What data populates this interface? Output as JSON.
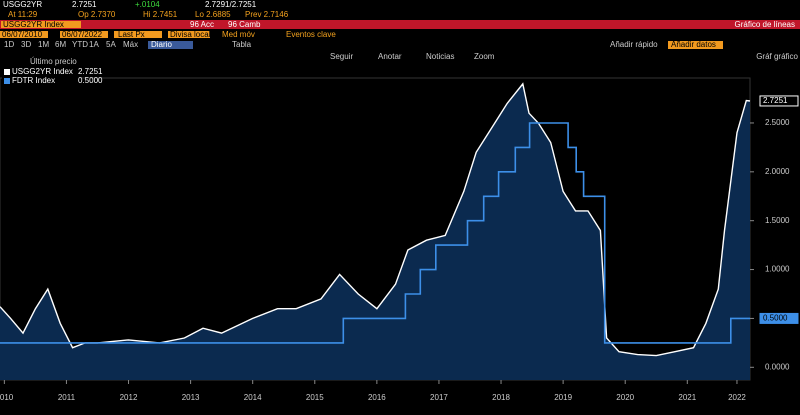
{
  "header": {
    "ticker": "USGG2YR",
    "last": "2.7251",
    "change": "+.0104",
    "bidask": "2.7291/2.7251",
    "at": "At 11:29",
    "open": "Op 2.7370",
    "high": "Hi 2.7451",
    "low": "Lo 2.6885",
    "prev": "Prev 2.7146"
  },
  "toolbar": {
    "security": "USGG2YR Index",
    "acc": "96 Acc",
    "camb": "96 Camb",
    "chart_type": "Gráfico de líneas",
    "start": "06/07/2010",
    "end": "06/07/2022",
    "field": "Last Px",
    "currency": "Divisa local",
    "ma": "Med móv",
    "events": "Eventos clave",
    "periods": [
      "1D",
      "3D",
      "1M",
      "6M",
      "YTD",
      "1A",
      "5A",
      "Máx"
    ],
    "freq": "Diario",
    "table": "Tabla",
    "quick_add": "Añadir rápido",
    "add_data": "Añadir datos"
  },
  "chart_tools": [
    "Seguir",
    "Anotar",
    "Noticias",
    "Zoom"
  ],
  "chart_menu": "Gráf gráfico",
  "chart_data": {
    "type": "line",
    "legend_title": "Último precio",
    "xlim": [
      2010.43,
      2022.51
    ],
    "xticks": [
      {
        "value": 2010.5,
        "label": "2010"
      },
      {
        "value": 2011.5,
        "label": "2011"
      },
      {
        "value": 2012.5,
        "label": "2012"
      },
      {
        "value": 2013.5,
        "label": "2013"
      },
      {
        "value": 2014.5,
        "label": "2014"
      },
      {
        "value": 2015.5,
        "label": "2015"
      },
      {
        "value": 2016.5,
        "label": "2016"
      },
      {
        "value": 2017.5,
        "label": "2017"
      },
      {
        "value": 2018.5,
        "label": "2018"
      },
      {
        "value": 2019.5,
        "label": "2019"
      },
      {
        "value": 2020.5,
        "label": "2020"
      },
      {
        "value": 2021.5,
        "label": "2021"
      },
      {
        "value": 2022.3,
        "label": "2022"
      }
    ],
    "ylim": [
      -0.13,
      2.96
    ],
    "yticks": [
      {
        "value": 0,
        "label": "0.0000"
      },
      {
        "value": 0.5,
        "label": "0.5000"
      },
      {
        "value": 1,
        "label": "1.0000"
      },
      {
        "value": 1.5,
        "label": "1.5000"
      },
      {
        "value": 2,
        "label": "2.0000"
      },
      {
        "value": 2.5,
        "label": "2.5000"
      }
    ],
    "series": [
      {
        "name": "USGG2YR Index",
        "last": "2.7251",
        "color": "#ffffff",
        "area": "#0b2a4f",
        "x": [
          2010.43,
          2010.6,
          2010.8,
          2011.0,
          2011.2,
          2011.4,
          2011.6,
          2011.8,
          2012.0,
          2012.5,
          2013.0,
          2013.4,
          2013.7,
          2014.0,
          2014.5,
          2014.9,
          2015.2,
          2015.6,
          2015.9,
          2016.2,
          2016.5,
          2016.8,
          2017.0,
          2017.3,
          2017.6,
          2017.9,
          2018.1,
          2018.4,
          2018.6,
          2018.85,
          2018.95,
          2019.1,
          2019.3,
          2019.5,
          2019.7,
          2019.9,
          2020.1,
          2020.2,
          2020.4,
          2020.7,
          2021.0,
          2021.3,
          2021.6,
          2021.8,
          2022.0,
          2022.1,
          2022.3,
          2022.45,
          2022.51
        ],
        "values": [
          0.62,
          0.5,
          0.35,
          0.6,
          0.8,
          0.45,
          0.2,
          0.25,
          0.25,
          0.28,
          0.25,
          0.3,
          0.4,
          0.35,
          0.5,
          0.6,
          0.6,
          0.7,
          0.95,
          0.75,
          0.6,
          0.85,
          1.2,
          1.3,
          1.35,
          1.8,
          2.2,
          2.5,
          2.7,
          2.9,
          2.6,
          2.5,
          2.3,
          1.8,
          1.6,
          1.6,
          1.4,
          0.3,
          0.16,
          0.13,
          0.12,
          0.16,
          0.2,
          0.45,
          0.8,
          1.4,
          2.4,
          2.73,
          2.7251
        ]
      },
      {
        "name": "FDTR Index",
        "last": "0.5000",
        "color": "#3d8fe8",
        "x": [
          2010.43,
          2015.96,
          2015.96,
          2016.96,
          2016.96,
          2017.2,
          2017.2,
          2017.45,
          2017.45,
          2017.96,
          2017.96,
          2018.22,
          2018.22,
          2018.46,
          2018.46,
          2018.73,
          2018.73,
          2018.96,
          2018.96,
          2019.58,
          2019.58,
          2019.71,
          2019.71,
          2019.83,
          2019.83,
          2020.17,
          2020.17,
          2022.2,
          2022.2,
          2022.51
        ],
        "values": [
          0.25,
          0.25,
          0.5,
          0.5,
          0.75,
          0.75,
          1.0,
          1.0,
          1.25,
          1.25,
          1.5,
          1.5,
          1.75,
          1.75,
          2.0,
          2.0,
          2.25,
          2.25,
          2.5,
          2.5,
          2.25,
          2.25,
          2.0,
          2.0,
          1.75,
          1.75,
          0.25,
          0.25,
          0.5,
          0.5
        ]
      }
    ]
  }
}
